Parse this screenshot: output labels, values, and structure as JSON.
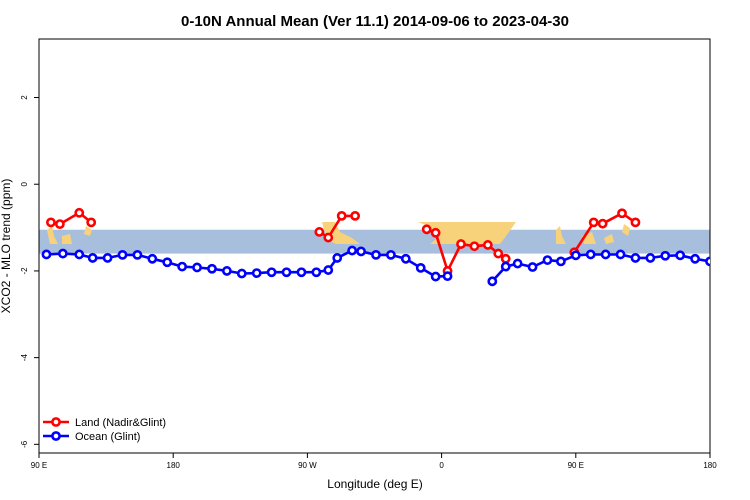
{
  "chart_data": {
    "type": "line",
    "title": "0-10N Annual Mean (Ver 11.1)   2014-09-06 to 2023-04-30",
    "xlabel": "Longitude (deg E)",
    "ylabel": "XCO2 - MLO trend (ppm)",
    "xlim": [
      90,
      540
    ],
    "ylim": [
      -6.2,
      3.35
    ],
    "x_ticks": [
      {
        "value": 90,
        "label": "90 E"
      },
      {
        "value": 180,
        "label": "180"
      },
      {
        "value": 270,
        "label": "90 W"
      },
      {
        "value": 360,
        "label": "0"
      },
      {
        "value": 450,
        "label": "90 E"
      },
      {
        "value": 540,
        "label": "180"
      }
    ],
    "y_ticks": [
      {
        "value": 2,
        "label": "2"
      },
      {
        "value": 0,
        "label": "0"
      },
      {
        "value": -2,
        "label": "-2"
      },
      {
        "value": -4,
        "label": "-4"
      },
      {
        "value": -6,
        "label": "-6"
      }
    ],
    "legend_position": "bottom-left",
    "grid": false,
    "background_band": {
      "y_min": -1.6,
      "y_max": -1.05,
      "color": "#a8bedd",
      "land_color": "#f7d27a"
    },
    "series": [
      {
        "name": "Land (Nadir&Glint)",
        "color": "#ff0000",
        "segments": [
          [
            [
              98,
              -0.88
            ],
            [
              104,
              -0.92
            ],
            [
              117,
              -0.66
            ],
            [
              125,
              -0.88
            ]
          ],
          [
            [
              278,
              -1.1
            ],
            [
              284,
              -1.23
            ],
            [
              293,
              -0.73
            ],
            [
              302,
              -0.73
            ]
          ],
          [
            [
              350,
              -1.04
            ],
            [
              356,
              -1.12
            ],
            [
              364,
              -2.0
            ],
            [
              373,
              -1.38
            ],
            [
              382,
              -1.43
            ],
            [
              391,
              -1.4
            ],
            [
              398,
              -1.6
            ],
            [
              403,
              -1.72
            ]
          ],
          [
            [
              449,
              -1.57
            ],
            [
              462,
              -0.88
            ],
            [
              468,
              -0.91
            ],
            [
              481,
              -0.67
            ],
            [
              490,
              -0.88
            ]
          ]
        ]
      },
      {
        "name": "Ocean (Glint)",
        "color": "#0000ff",
        "segments": [
          [
            [
              95,
              -1.62
            ],
            [
              106,
              -1.6
            ],
            [
              117,
              -1.62
            ],
            [
              126,
              -1.7
            ],
            [
              136,
              -1.7
            ],
            [
              146,
              -1.63
            ],
            [
              156,
              -1.63
            ],
            [
              166,
              -1.72
            ],
            [
              176,
              -1.8
            ],
            [
              186,
              -1.9
            ],
            [
              196,
              -1.92
            ],
            [
              206,
              -1.95
            ],
            [
              216,
              -2.0
            ],
            [
              226,
              -2.06
            ],
            [
              236,
              -2.05
            ],
            [
              246,
              -2.03
            ],
            [
              256,
              -2.03
            ],
            [
              266,
              -2.03
            ],
            [
              276,
              -2.03
            ],
            [
              284,
              -1.98
            ],
            [
              290,
              -1.7
            ],
            [
              300,
              -1.53
            ],
            [
              306,
              -1.55
            ],
            [
              316,
              -1.63
            ],
            [
              326,
              -1.63
            ],
            [
              336,
              -1.72
            ],
            [
              346,
              -1.93
            ],
            [
              356,
              -2.13
            ],
            [
              364,
              -2.12
            ]
          ],
          [
            [
              394,
              -2.24
            ],
            [
              403,
              -1.9
            ],
            [
              411,
              -1.83
            ],
            [
              421,
              -1.91
            ],
            [
              431,
              -1.75
            ],
            [
              440,
              -1.78
            ],
            [
              450,
              -1.64
            ],
            [
              460,
              -1.62
            ],
            [
              470,
              -1.62
            ],
            [
              480,
              -1.62
            ],
            [
              490,
              -1.7
            ],
            [
              500,
              -1.7
            ],
            [
              510,
              -1.65
            ],
            [
              520,
              -1.64
            ],
            [
              530,
              -1.72
            ],
            [
              540,
              -1.78
            ]
          ]
        ]
      }
    ]
  }
}
